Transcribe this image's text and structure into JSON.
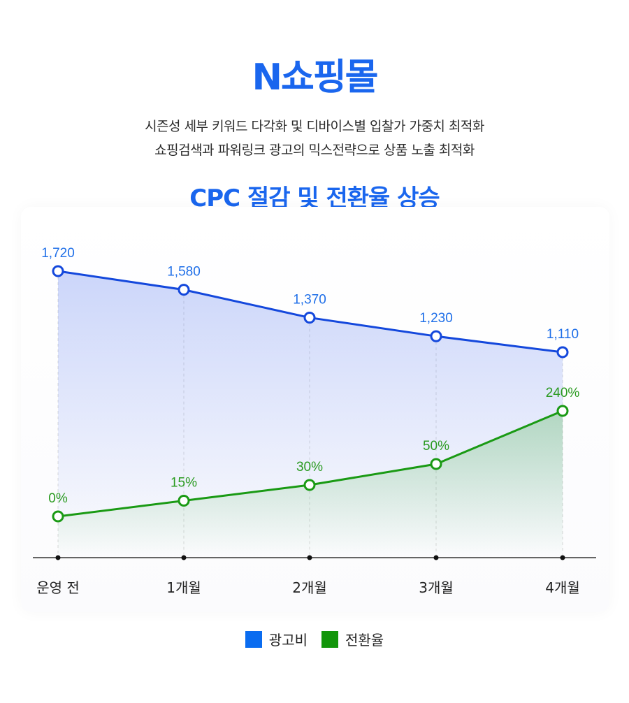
{
  "header": {
    "title": "N쇼핑몰",
    "description_lines": [
      "시즌성 세부 키워드 다각화 및 디바이스별 입찰가 가중치 최적화",
      "쇼핑검색과 파워링크 광고의 믹스전략으로 상품 노출 최적화"
    ],
    "subtitle": "CPC 절감 및 전환율 상승"
  },
  "colors": {
    "title": "#1a66ee",
    "blue_series": "#1448dc",
    "blue_label": "#1f6fe8",
    "green_series": "#1a9a14",
    "green_label": "#2a9a20",
    "axis": "#333333",
    "legend_blue": "#0a6cf0",
    "legend_green": "#12960a"
  },
  "chart_data": {
    "type": "line",
    "categories": [
      "운영 전",
      "1개월",
      "2개월",
      "3개월",
      "4개월"
    ],
    "series": [
      {
        "name": "광고비",
        "values": [
          1720,
          1580,
          1370,
          1230,
          1110
        ],
        "labels": [
          "1,720",
          "1,580",
          "1,370",
          "1,230",
          "1,110"
        ]
      },
      {
        "name": "전환율",
        "values": [
          0,
          15,
          30,
          50,
          240
        ],
        "labels": [
          "0%",
          "15%",
          "30%",
          "50%",
          "240%"
        ]
      }
    ],
    "legend": [
      "광고비",
      "전환율"
    ],
    "legend_position": "bottom-center",
    "grid": "vertical dashed guides"
  }
}
